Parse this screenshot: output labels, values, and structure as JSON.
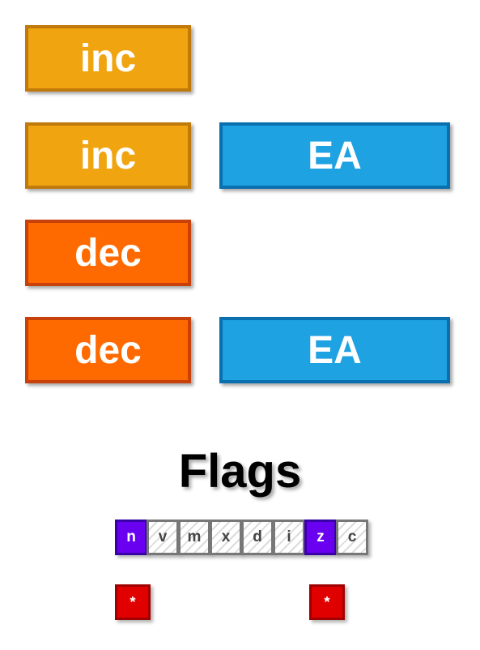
{
  "rows": [
    {
      "op": "inc",
      "operand": ""
    },
    {
      "op": "inc",
      "operand": "EA"
    },
    {
      "op": "dec",
      "operand": ""
    },
    {
      "op": "dec",
      "operand": "EA"
    }
  ],
  "flags": {
    "title": "Flags",
    "items": [
      {
        "label": "n",
        "active": true
      },
      {
        "label": "v",
        "active": false
      },
      {
        "label": "m",
        "active": false
      },
      {
        "label": "x",
        "active": false
      },
      {
        "label": "d",
        "active": false
      },
      {
        "label": "i",
        "active": false
      },
      {
        "label": "z",
        "active": true
      },
      {
        "label": "c",
        "active": false
      }
    ],
    "marker": "*"
  },
  "colors": {
    "inc": "#f0a410",
    "dec": "#ff6a00",
    "ea": "#1ea2e2",
    "flag_active": "#6a00f0",
    "marker": "#e00000"
  }
}
